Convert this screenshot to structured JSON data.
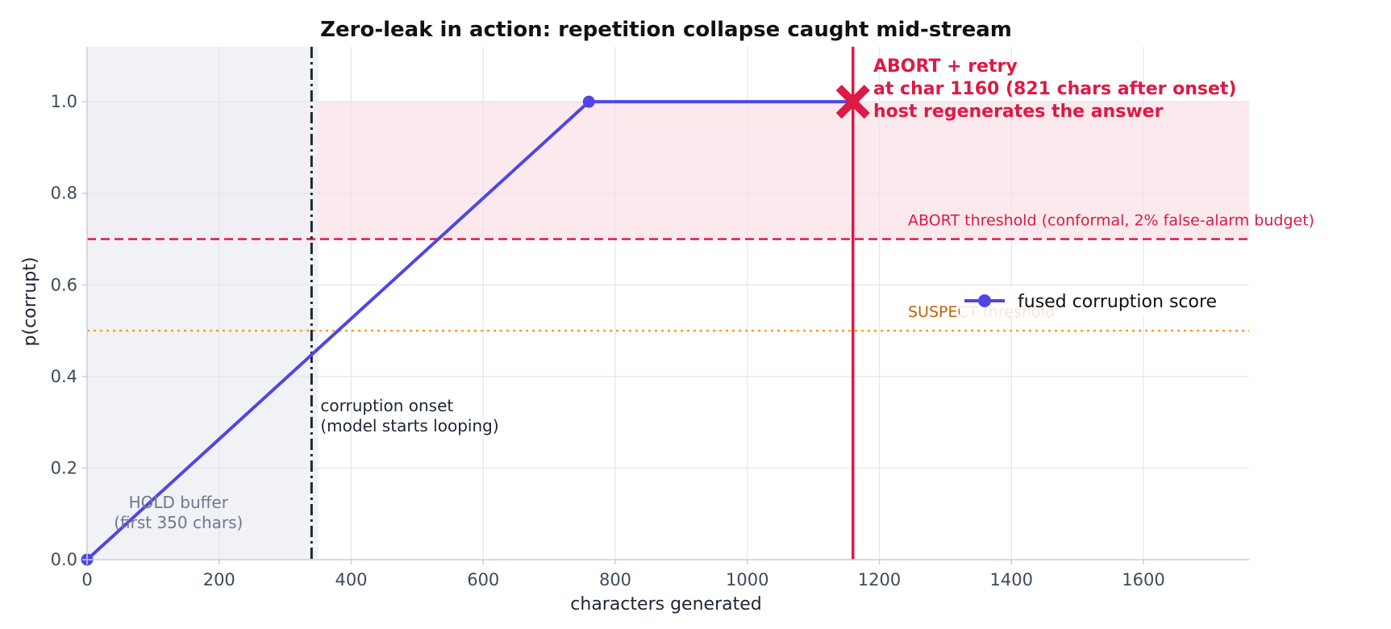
{
  "chart_data": {
    "type": "line",
    "title": "Zero-leak in action: repetition collapse caught mid-stream",
    "xlabel": "characters generated",
    "ylabel": "p(corrupt)",
    "xlim": [
      0,
      1760
    ],
    "ylim": [
      0,
      1.12
    ],
    "xticks": [
      0,
      200,
      400,
      600,
      800,
      1000,
      1200,
      1400,
      1600
    ],
    "yticks": [
      0.0,
      0.2,
      0.4,
      0.6,
      0.8,
      1.0
    ],
    "grid": true,
    "legend_position": "center-right",
    "series": [
      {
        "name": "fused corruption score",
        "color": "#4f46e5",
        "x": [
          0,
          760,
          1160
        ],
        "y": [
          0.0,
          1.0,
          1.0
        ],
        "markers_at": [
          0,
          760
        ]
      }
    ],
    "thresholds": [
      {
        "id": "abort",
        "y": 0.7,
        "label": "ABORT threshold (conformal, 2% false-alarm budget)",
        "style": "dashed",
        "color": "#dc1a45"
      },
      {
        "id": "suspect",
        "y": 0.5,
        "label": "SUSPECT threshold",
        "style": "dotted",
        "color": "#f59e0b",
        "label_color": "#c45f07"
      }
    ],
    "abort_zone": {
      "y_from": 0.7,
      "y_to": 1.0,
      "color": "#fbe9ee"
    },
    "hold_buffer": {
      "x_from": 0,
      "x_to": 350,
      "color": "#eef0f5",
      "label_lines": [
        "HOLD buffer",
        "(first 350 chars)"
      ]
    },
    "onset": {
      "x": 340,
      "label_lines": [
        "corruption onset",
        "(model starts looping)"
      ],
      "color": "#1e2533"
    },
    "abort_event": {
      "x": 1160,
      "y": 1.0,
      "color": "#dc1a45",
      "label_lines": [
        "ABORT + retry",
        "at char 1160 (821 chars after onset)",
        "host regenerates the answer"
      ]
    }
  }
}
